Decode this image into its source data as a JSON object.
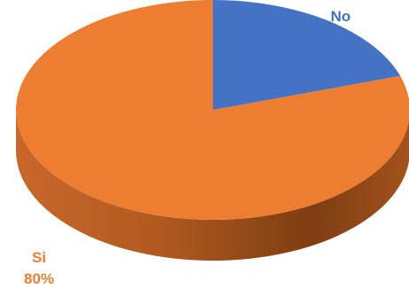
{
  "chart_data": {
    "type": "pie",
    "title": "",
    "style": "3d",
    "start_angle_deg": -90,
    "direction": "clockwise",
    "slices": [
      {
        "label": "No",
        "value": 20,
        "value_label": "20%",
        "color": "#4472C4",
        "side_color": "#2F528F"
      },
      {
        "label": "Si",
        "value": 80,
        "value_label": "80%",
        "color": "#ED7D31",
        "side_color": "#A0501A"
      }
    ],
    "legend": "none"
  }
}
